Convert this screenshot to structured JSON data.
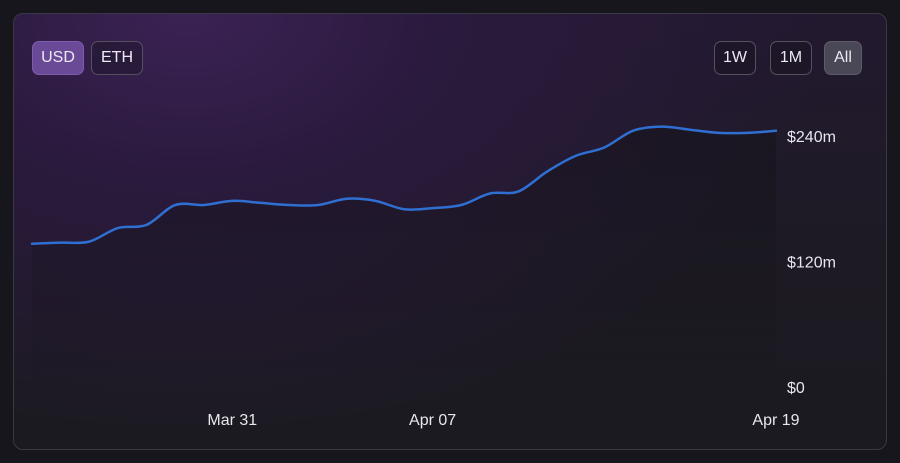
{
  "currency_toggle": [
    {
      "label": "USD",
      "selected": true
    },
    {
      "label": "ETH",
      "selected": false
    }
  ],
  "range_toggle": [
    {
      "label": "1W",
      "selected": false
    },
    {
      "label": "1M",
      "selected": false
    },
    {
      "label": "All",
      "selected": true
    }
  ],
  "colors": {
    "line": "#2f6fd1",
    "accent_selected": "#6a4a96"
  },
  "chart_data": {
    "type": "area",
    "title": "",
    "xlabel": "",
    "ylabel": "",
    "y_unit": "USD (millions)",
    "ylim": [
      0,
      250
    ],
    "y_ticks": [
      {
        "value": 0,
        "label": "$0"
      },
      {
        "value": 120,
        "label": "$120m"
      },
      {
        "value": 240,
        "label": "$240m"
      }
    ],
    "x_ticks": [
      {
        "date": "2024-03-31",
        "label": "Mar 31"
      },
      {
        "date": "2024-04-07",
        "label": "Apr 07"
      },
      {
        "date": "2024-04-19",
        "label": "Apr 19"
      }
    ],
    "grid": false,
    "series": [
      {
        "name": "",
        "points": [
          {
            "x": "2024-03-24",
            "y": 137
          },
          {
            "x": "2024-03-25",
            "y": 138
          },
          {
            "x": "2024-03-26",
            "y": 139
          },
          {
            "x": "2024-03-27",
            "y": 152
          },
          {
            "x": "2024-03-28",
            "y": 155
          },
          {
            "x": "2024-03-29",
            "y": 174
          },
          {
            "x": "2024-03-30",
            "y": 174
          },
          {
            "x": "2024-03-31",
            "y": 178
          },
          {
            "x": "2024-04-01",
            "y": 176
          },
          {
            "x": "2024-04-02",
            "y": 174
          },
          {
            "x": "2024-04-03",
            "y": 174
          },
          {
            "x": "2024-04-04",
            "y": 180
          },
          {
            "x": "2024-04-05",
            "y": 178
          },
          {
            "x": "2024-04-06",
            "y": 170
          },
          {
            "x": "2024-04-07",
            "y": 171
          },
          {
            "x": "2024-04-08",
            "y": 174
          },
          {
            "x": "2024-04-09",
            "y": 185
          },
          {
            "x": "2024-04-10",
            "y": 187
          },
          {
            "x": "2024-04-11",
            "y": 206
          },
          {
            "x": "2024-04-12",
            "y": 221
          },
          {
            "x": "2024-04-13",
            "y": 229
          },
          {
            "x": "2024-04-14",
            "y": 245
          },
          {
            "x": "2024-04-15",
            "y": 249
          },
          {
            "x": "2024-04-16",
            "y": 246
          },
          {
            "x": "2024-04-17",
            "y": 243
          },
          {
            "x": "2024-04-18",
            "y": 243
          },
          {
            "x": "2024-04-19",
            "y": 245
          }
        ]
      }
    ]
  }
}
